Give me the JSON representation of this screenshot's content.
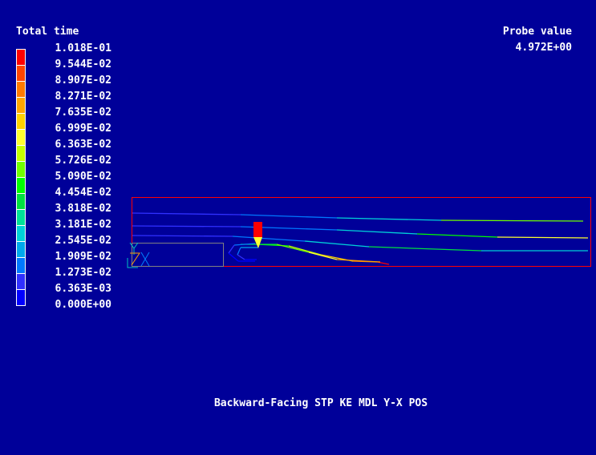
{
  "legend": {
    "title": "Total time",
    "labels": [
      "1.018E-01",
      "9.544E-02",
      "8.907E-02",
      "8.271E-02",
      "7.635E-02",
      "6.999E-02",
      "6.363E-02",
      "5.726E-02",
      "5.090E-02",
      "4.454E-02",
      "3.818E-02",
      "3.181E-02",
      "2.545E-02",
      "1.909E-02",
      "1.273E-02",
      "6.363E-03",
      "0.000E+00"
    ],
    "colors": [
      "#ff0000",
      "#ff4400",
      "#ff7a00",
      "#ffa600",
      "#ffd200",
      "#ffff30",
      "#c4ff00",
      "#70ff00",
      "#00ff00",
      "#00e040",
      "#00e098",
      "#00d0d8",
      "#00a8ec",
      "#0078ff",
      "#3030ff",
      "#0000ff"
    ]
  },
  "probe": {
    "title": "Probe value",
    "value": "4.972E+00"
  },
  "caption": "Backward-Facing STP KE MDL Y-X POS",
  "colors": {
    "background": "#000099",
    "domain_outline": "#ff0000",
    "step_outline": "#808080",
    "probe_body": "#ff0000",
    "probe_tip": "#ffff30"
  }
}
